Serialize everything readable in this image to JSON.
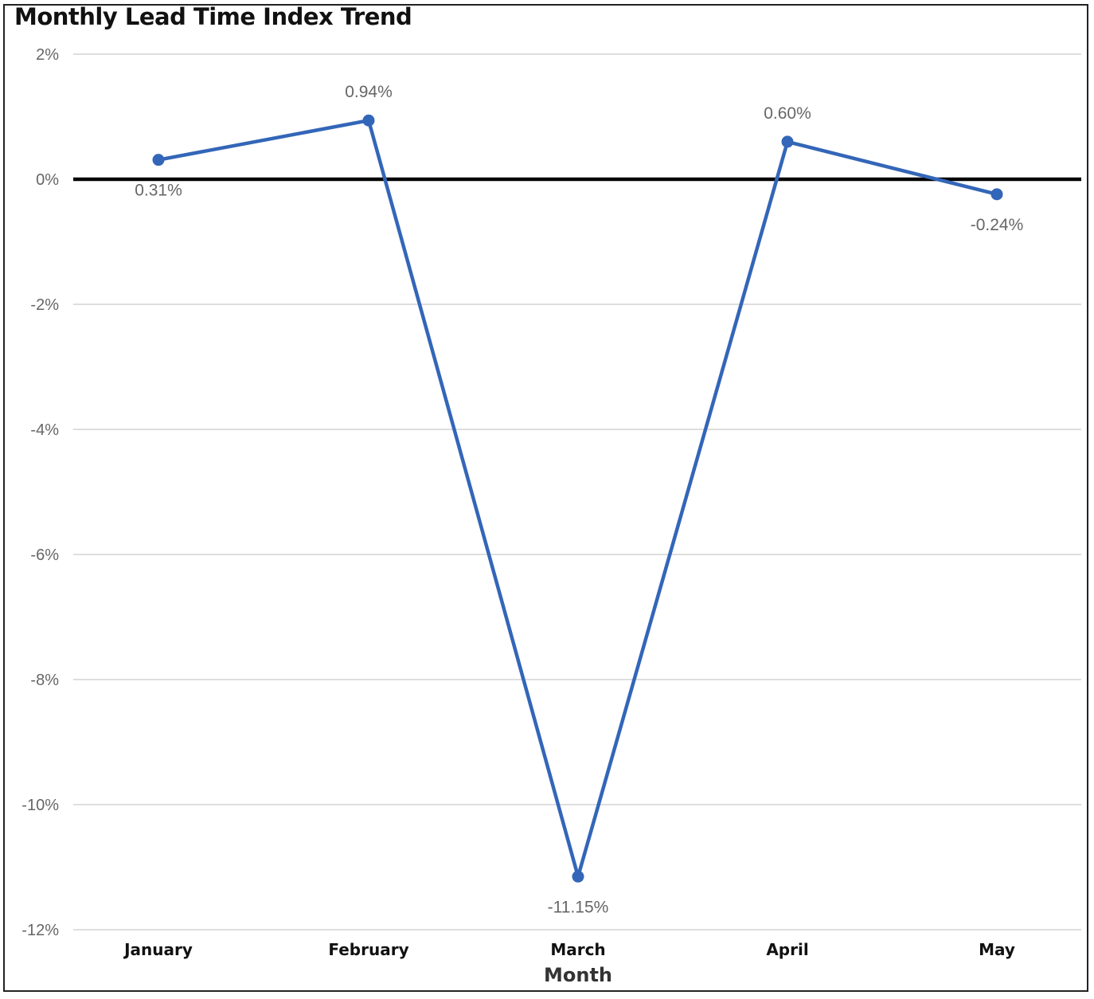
{
  "chart_data": {
    "type": "line",
    "title": "Monthly Lead Time Index Trend",
    "xlabel": "Month",
    "ylabel": "",
    "categories": [
      "January",
      "February",
      "March",
      "April",
      "May"
    ],
    "series": [
      {
        "values": [
          0.31,
          0.94,
          -11.15,
          0.6,
          -0.24
        ],
        "data_labels": [
          "0.31%",
          "0.94%",
          "-11.15%",
          "0.60%",
          "-0.24%"
        ],
        "color": "#3366b8"
      }
    ],
    "ylim": [
      -12,
      2
    ],
    "yticks": [
      2,
      0,
      -2,
      -4,
      -6,
      -8,
      -10,
      -12
    ],
    "ytick_labels": [
      "2%",
      "0%",
      "-2%",
      "-4%",
      "-6%",
      "-8%",
      "-10%",
      "-12%"
    ],
    "zero_line": true,
    "grid": true,
    "gridline_color": "#d3d3d3",
    "zero_line_color": "#000000",
    "legend": "none"
  }
}
